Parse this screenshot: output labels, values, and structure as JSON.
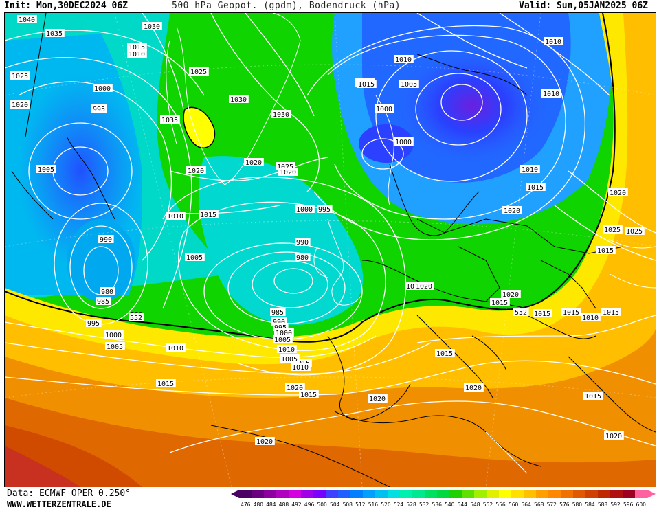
{
  "header": {
    "init": "Init: Mon,30DEC2024 06Z",
    "title": "500 hPa Geopot. (gpdm), Bodendruck (hPa)",
    "valid": "Valid: Sun,05JAN2025 06Z"
  },
  "footer": {
    "data_source": "Data: ECMWF OPER 0.250°",
    "website": "WWW.WETTERZENTRALE.DE"
  },
  "colorbar": {
    "ticks": [
      "476",
      "480",
      "484",
      "488",
      "492",
      "496",
      "500",
      "504",
      "508",
      "512",
      "516",
      "520",
      "524",
      "528",
      "532",
      "536",
      "540",
      "544",
      "548",
      "552",
      "556",
      "560",
      "564",
      "568",
      "572",
      "576",
      "580",
      "584",
      "588",
      "592",
      "596",
      "600"
    ],
    "colors": [
      "#4b0064",
      "#6a0080",
      "#8c00a0",
      "#b000c0",
      "#d400e0",
      "#a000e8",
      "#7800ff",
      "#4040ff",
      "#2060ff",
      "#0080ff",
      "#00a0ff",
      "#00c0f0",
      "#00e0e0",
      "#00f0b0",
      "#00e890",
      "#00e060",
      "#00d840",
      "#20d000",
      "#60e000",
      "#a0f000",
      "#e0f000",
      "#ffff00",
      "#ffe000",
      "#ffc000",
      "#ffa000",
      "#ff8800",
      "#f07000",
      "#e05800",
      "#d04000",
      "#c02800",
      "#b01010",
      "#a00020",
      "#ff60a0"
    ]
  },
  "map": {
    "contour_552_label": "552",
    "pressure_labels": [
      {
        "text": "1040"
      },
      {
        "text": "1035"
      },
      {
        "text": "1030"
      },
      {
        "text": "1015"
      },
      {
        "text": "1010"
      },
      {
        "text": "1025"
      },
      {
        "text": "1000"
      },
      {
        "text": "995"
      },
      {
        "text": "1020"
      },
      {
        "text": "1005"
      },
      {
        "text": "990"
      },
      {
        "text": "980"
      },
      {
        "text": "985"
      },
      {
        "text": "995"
      },
      {
        "text": "552"
      },
      {
        "text": "1000"
      },
      {
        "text": "1005"
      },
      {
        "text": "1010"
      },
      {
        "text": "1015"
      },
      {
        "text": "1020"
      },
      {
        "text": "1025"
      },
      {
        "text": "1030"
      },
      {
        "text": "1035"
      },
      {
        "text": "1030"
      },
      {
        "text": "1020"
      },
      {
        "text": "1025"
      },
      {
        "text": "1020"
      },
      {
        "text": "1010"
      },
      {
        "text": "1015"
      },
      {
        "text": "1005"
      },
      {
        "text": "1000"
      },
      {
        "text": "995"
      },
      {
        "text": "990"
      },
      {
        "text": "980"
      },
      {
        "text": "985"
      },
      {
        "text": "990"
      },
      {
        "text": "995"
      },
      {
        "text": "1000"
      },
      {
        "text": "1005"
      },
      {
        "text": "1010"
      },
      {
        "text": "1015"
      },
      {
        "text": "1020"
      },
      {
        "text": "1010"
      },
      {
        "text": "1005"
      },
      {
        "text": "1000"
      },
      {
        "text": "1015"
      },
      {
        "text": "1000"
      },
      {
        "text": "1010"
      },
      {
        "text": "1010"
      },
      {
        "text": "1015"
      },
      {
        "text": "1020"
      },
      {
        "text": "1020"
      },
      {
        "text": "1025"
      },
      {
        "text": "1025"
      },
      {
        "text": "1015"
      },
      {
        "text": "1015"
      },
      {
        "text": "1020"
      },
      {
        "text": "1015"
      },
      {
        "text": "1020"
      },
      {
        "text": "1015"
      },
      {
        "text": "1015"
      },
      {
        "text": "1015"
      },
      {
        "text": "1015"
      },
      {
        "text": "1020"
      },
      {
        "text": "1020"
      },
      {
        "text": "1010"
      },
      {
        "text": "1005"
      },
      {
        "text": "1015"
      },
      {
        "text": "1010"
      },
      {
        "text": "1020"
      },
      {
        "text": "1015"
      },
      {
        "text": "552"
      },
      {
        "text": "1015"
      },
      {
        "text": "1010"
      },
      {
        "text": "1020"
      }
    ]
  }
}
